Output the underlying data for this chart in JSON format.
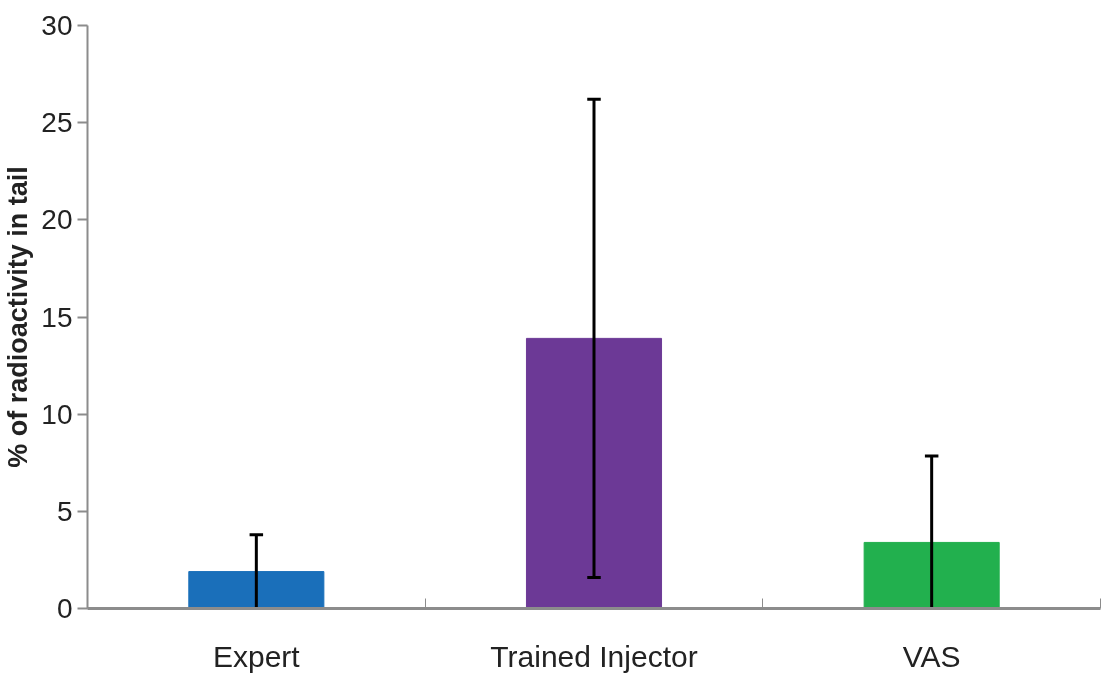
{
  "chart_data": {
    "type": "bar",
    "ylabel": "% of radioactivity in tail",
    "categories": [
      "Expert",
      "Trained Injector",
      "VAS"
    ],
    "values": [
      1.9,
      13.9,
      3.4
    ],
    "colors": [
      "#1a6fba",
      "#6c3996",
      "#22b04e"
    ],
    "errors": [
      1.9,
      12.3,
      [
        0,
        7.85
      ]
    ],
    "ylim": [
      0,
      30
    ],
    "yticks": [
      0,
      5,
      10,
      15,
      20,
      25,
      30
    ],
    "grid": false
  }
}
